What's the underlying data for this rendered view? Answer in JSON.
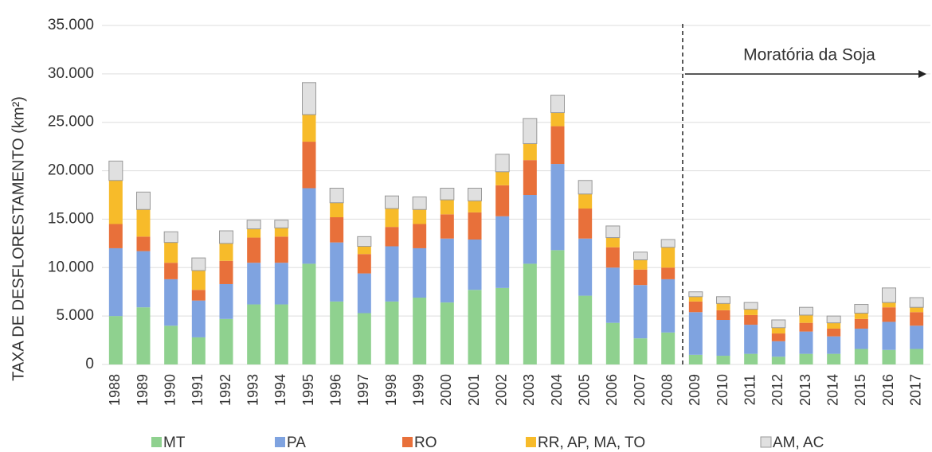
{
  "chart_data": {
    "type": "stacked_bar",
    "ylabel": "TAXA DE DESFLORESTAMENTO (km²)",
    "annotation": "Moratória da Soja",
    "categories": [
      "1988",
      "1989",
      "1990",
      "1991",
      "1992",
      "1993",
      "1994",
      "1995",
      "1996",
      "1997",
      "1998",
      "1999",
      "2000",
      "2001",
      "2002",
      "2003",
      "2004",
      "2005",
      "2006",
      "2007",
      "2008",
      "2009",
      "2010",
      "2011",
      "2012",
      "2013",
      "2014",
      "2015",
      "2016",
      "2017"
    ],
    "series": [
      {
        "name": "MT",
        "color": "#8fd18f",
        "values": [
          5000,
          5900,
          4000,
          2800,
          4700,
          6200,
          6200,
          10400,
          6500,
          5300,
          6500,
          6900,
          6400,
          7700,
          7900,
          10400,
          11800,
          7100,
          4300,
          2700,
          3300,
          1000,
          900,
          1100,
          800,
          1100,
          1100,
          1600,
          1500,
          1600
        ]
      },
      {
        "name": "PA",
        "color": "#7fa3e0",
        "values": [
          7000,
          5800,
          4800,
          3800,
          3600,
          4300,
          4300,
          7800,
          6100,
          4100,
          5700,
          5100,
          6600,
          5200,
          7400,
          7100,
          8900,
          5900,
          5700,
          5500,
          5500,
          4400,
          3700,
          3000,
          1600,
          2300,
          1800,
          2100,
          2900,
          2400
        ]
      },
      {
        "name": "RO",
        "color": "#e8703a",
        "values": [
          2500,
          1500,
          1700,
          1100,
          2400,
          2600,
          2700,
          4800,
          2600,
          2000,
          2000,
          2500,
          2500,
          2800,
          3200,
          3600,
          3900,
          3100,
          2100,
          1600,
          1200,
          1100,
          1000,
          1000,
          800,
          900,
          800,
          1000,
          1500,
          1400
        ]
      },
      {
        "name": "RR, AP, MA, TO",
        "color": "#f7bb2a",
        "values": [
          4500,
          2800,
          2100,
          2000,
          1800,
          900,
          900,
          2800,
          1500,
          800,
          1900,
          1500,
          1500,
          1200,
          1400,
          1700,
          1400,
          1500,
          1000,
          1000,
          2100,
          500,
          700,
          600,
          600,
          800,
          600,
          600,
          500,
          500
        ]
      },
      {
        "name": "AM, AC",
        "color": "#e0e0e0",
        "values": [
          2000,
          1800,
          1100,
          1300,
          1300,
          900,
          800,
          3300,
          1500,
          1000,
          1300,
          1300,
          1200,
          1300,
          1800,
          2600,
          1800,
          1400,
          1200,
          800,
          800,
          500,
          700,
          700,
          800,
          800,
          700,
          900,
          1500,
          1000
        ]
      }
    ],
    "ylim": [
      0,
      35000
    ],
    "yticks": [
      0,
      {
        "value": 5000,
        "label": "5.000"
      },
      {
        "value": 10000,
        "label": "10.000"
      },
      {
        "value": 15000,
        "label": "15.000"
      },
      {
        "value": 20000,
        "label": "20.000"
      },
      {
        "value": 25000,
        "label": "25.000"
      },
      {
        "value": 30000,
        "label": "30.000"
      },
      {
        "value": 35000,
        "label": "35.000"
      }
    ],
    "grid": true,
    "legend": "bottom"
  }
}
